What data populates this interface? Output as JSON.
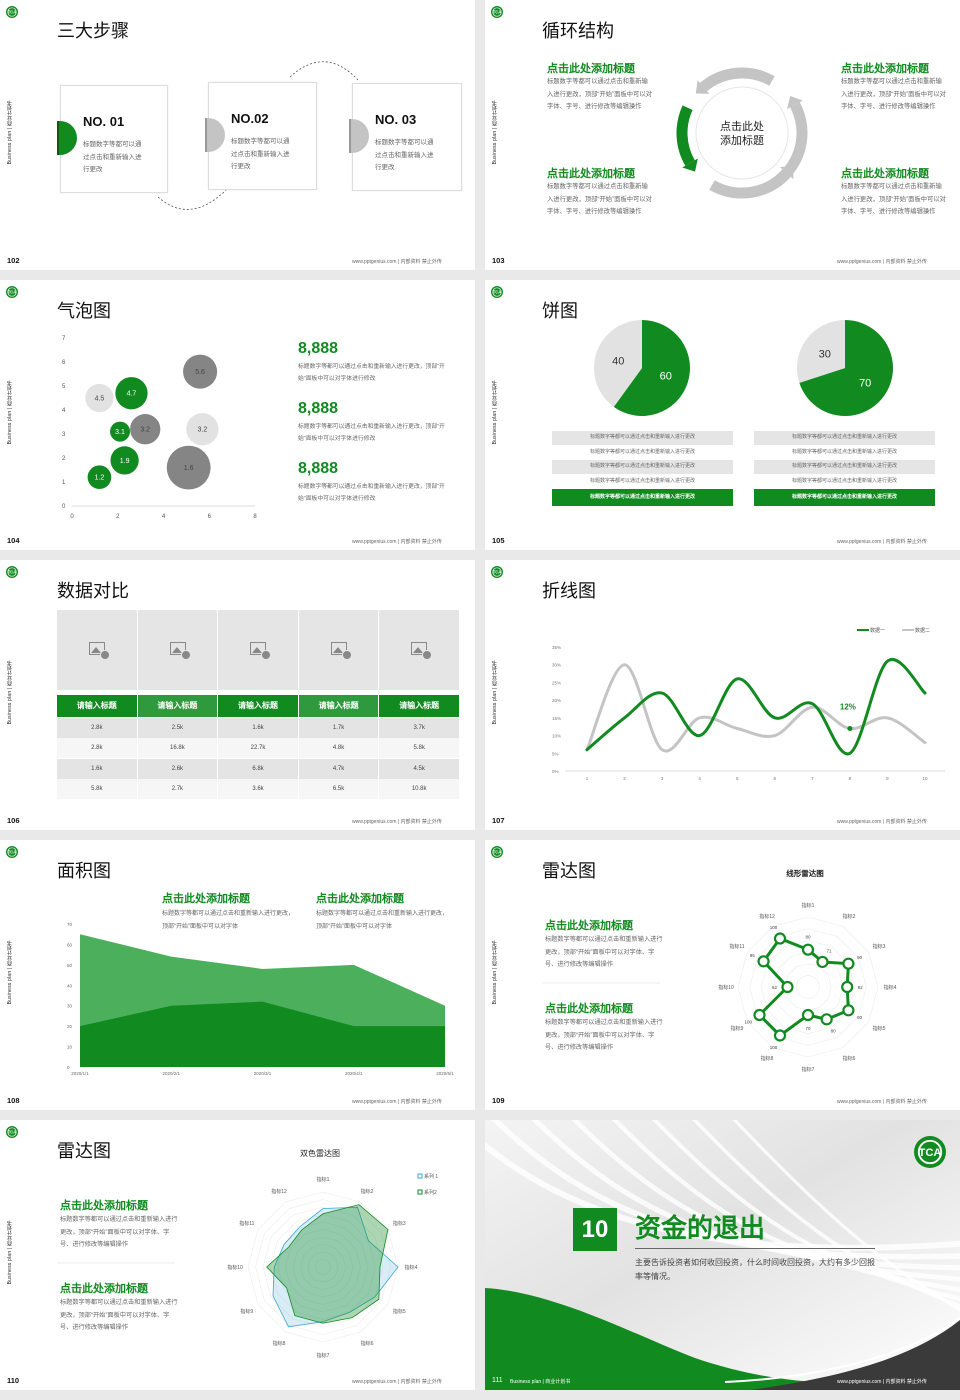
{
  "colors": {
    "green": "#118a20",
    "green_light": "#4caf5c",
    "gray_light": "#e2e2e2",
    "gray_mid": "#c4c4c4",
    "gray_dark": "#858585",
    "blue": "#3aa7d1",
    "dark": "#3a3a3a"
  },
  "common": {
    "side_text": "Business plan | 商业计划书",
    "footer": "www.pptgenius.com | 内部资料 禁止外传",
    "logo_icon": "tca-logo"
  },
  "slides": [
    {
      "page": "102",
      "title": "三大步骤",
      "steps": [
        {
          "label": "NO. 01",
          "text": "标题数字等都可以通过点击和重新输入进行更改",
          "active": true
        },
        {
          "label": "NO.02",
          "text": "标题数字等都可以通过点击和重新输入进行更改",
          "active": false
        },
        {
          "label": "NO. 03",
          "text": "标题数字等都可以通过点击和重新输入进行更改",
          "active": false
        }
      ]
    },
    {
      "page": "103",
      "title": "循环结构",
      "center_line1": "点击此处",
      "center_line2": "添加标题",
      "items": [
        {
          "heading": "点击此处添加标题",
          "text": "标题数字等都可以通过点击和重新输入进行更改，顶部“开始”面板中可以对字体、字号、进行修改等编辑操作"
        },
        {
          "heading": "点击此处添加标题",
          "text": "标题数字等都可以通过点击和重新输入进行更改，顶部“开始”面板中可以对字体、字号、进行修改等编辑操作"
        },
        {
          "heading": "点击此处添加标题",
          "text": "标题数字等都可以通过点击和重新输入进行更改，顶部“开始”面板中可以对字体、字号、进行修改等编辑操作"
        },
        {
          "heading": "点击此处添加标题",
          "text": "标题数字等都可以通过点击和重新输入进行更改，顶部“开始”面板中可以对字体、字号、进行修改等编辑操作"
        }
      ]
    },
    {
      "page": "104",
      "title": "气泡图",
      "stats": [
        {
          "value": "8,888",
          "text": "标题数字等都可以通过点击和重新输入进行更改，顶部“开始”面板中可以对字体进行修改"
        },
        {
          "value": "8,888",
          "text": "标题数字等都可以通过点击和重新输入进行更改，顶部“开始”面板中可以对字体进行修改"
        },
        {
          "value": "8,888",
          "text": "标题数字等都可以通过点击和重新输入进行更改，顶部“开始”面板中可以对字体进行修改"
        }
      ]
    },
    {
      "page": "105",
      "title": "饼图",
      "rows_left": [
        "标题数字等都可以通过点击和重新输入进行更改",
        "标题数字等都可以通过点击和重新输入进行更改",
        "标题数字等都可以通过点击和重新输入进行更改",
        "标题数字等都可以通过点击和重新输入进行更改",
        "标题数字等都可以通过点击和重新输入进行更改"
      ],
      "rows_right": [
        "标题数字等都可以通过点击和重新输入进行更改",
        "标题数字等都可以通过点击和重新输入进行更改",
        "标题数字等都可以通过点击和重新输入进行更改",
        "标题数字等都可以通过点击和重新输入进行更改",
        "标题数字等都可以通过点击和重新输入进行更改"
      ]
    },
    {
      "page": "106",
      "title": "数据对比",
      "image_icon": "image-placeholder-icon"
    },
    {
      "page": "107",
      "title": "折线图"
    },
    {
      "page": "108",
      "title": "面积图",
      "items": [
        {
          "heading": "点击此处添加标题",
          "text": "标题数字等都可以通过点击和重新输入进行更改，顶部“开始”面板中可以对字体"
        },
        {
          "heading": "点击此处添加标题",
          "text": "标题数字等都可以通过点击和重新输入进行更改，顶部“开始”面板中可以对字体"
        }
      ]
    },
    {
      "page": "109",
      "title": "雷达图",
      "items": [
        {
          "heading": "点击此处添加标题",
          "text": "标题数字等都可以通过点击和重新输入进行更改，顶部“开始”面板中可以对字体、字号、进行修改等编辑操作"
        },
        {
          "heading": "点击此处添加标题",
          "text": "标题数字等都可以通过点击和重新输入进行更改，顶部“开始”面板中可以对字体、字号、进行修改等编辑操作"
        }
      ]
    },
    {
      "page": "110",
      "title": "雷达图",
      "items": [
        {
          "heading": "点击此处添加标题",
          "text": "标题数字等都可以通过点击和重新输入进行更改，顶部“开始”面板中可以对字体、字号、进行修改等编辑操作"
        },
        {
          "heading": "点击此处添加标题",
          "text": "标题数字等都可以通过点击和重新输入进行更改，顶部“开始”面板中可以对字体、字号、进行修改等编辑操作"
        }
      ]
    },
    {
      "page": "111",
      "section_number": "10",
      "section_title": "资金的退出",
      "section_text": "主要告诉投资者如何收回投资，什么时间收回投资，大约有多少回报率等情况。",
      "bottom_left": "Business plan | 商业计划书"
    }
  ],
  "chart_data": [
    {
      "type": "scatter",
      "subtype": "bubble",
      "xlim": [
        0,
        8
      ],
      "ylim": [
        0,
        7
      ],
      "xticks": [
        "0",
        "2",
        "4",
        "6",
        "8"
      ],
      "yticks": [
        "0",
        "1",
        "2",
        "3",
        "4",
        "5",
        "6",
        "7"
      ],
      "points": [
        {
          "x": 1.2,
          "y": 1.2,
          "size": 1.4,
          "label": "1.2",
          "color": "green"
        },
        {
          "x": 2.3,
          "y": 1.9,
          "size": 2.0,
          "label": "1.9",
          "color": "green"
        },
        {
          "x": 2.1,
          "y": 3.1,
          "size": 1.0,
          "label": "3.1",
          "color": "green"
        },
        {
          "x": 3.2,
          "y": 3.2,
          "size": 2.3,
          "label": "3.2",
          "color": "gray_dark"
        },
        {
          "x": 1.2,
          "y": 4.5,
          "size": 2.0,
          "label": "4.5",
          "color": "gray_light"
        },
        {
          "x": 2.6,
          "y": 4.7,
          "size": 2.6,
          "label": "4.7",
          "color": "green"
        },
        {
          "x": 5.6,
          "y": 5.6,
          "size": 2.9,
          "label": "5.6",
          "color": "gray_dark"
        },
        {
          "x": 5.7,
          "y": 3.2,
          "size": 2.6,
          "label": "3.2",
          "color": "gray_light"
        },
        {
          "x": 5.1,
          "y": 1.6,
          "size": 4.8,
          "label": "1.6",
          "color": "gray_dark"
        }
      ]
    },
    {
      "type": "pie",
      "values": [
        60,
        40
      ],
      "labels": [
        "60",
        "40"
      ],
      "colors": [
        "green",
        "gray_light"
      ]
    },
    {
      "type": "pie",
      "values": [
        70,
        30
      ],
      "labels": [
        "70",
        "30"
      ],
      "colors": [
        "green",
        "gray_light"
      ]
    },
    {
      "type": "table",
      "headers": [
        "请输入标题",
        "请输入标题",
        "请输入标题",
        "请输入标题",
        "请输入标题"
      ],
      "rows": [
        [
          "2.8k",
          "2.5k",
          "1.6k",
          "1.7k",
          "3.7k"
        ],
        [
          "2.8k",
          "16.8k",
          "22.7k",
          "4.8k",
          "5.8k"
        ],
        [
          "1.6k",
          "2.6k",
          "6.8k",
          "4.7k",
          "4.5k"
        ],
        [
          "5.8k",
          "2.7k",
          "3.6k",
          "6.5k",
          "10.8k"
        ]
      ]
    },
    {
      "type": "line",
      "smooth": true,
      "x": [
        "1",
        "2",
        "3",
        "4",
        "5",
        "6",
        "7",
        "8",
        "9",
        "10"
      ],
      "yticks": [
        "0%",
        "5%",
        "10%",
        "15%",
        "20%",
        "25%",
        "30%",
        "35%"
      ],
      "ylim": [
        0,
        35
      ],
      "legend": "top-right",
      "series": [
        {
          "name": "数据一",
          "color": "green",
          "values": [
            6,
            15,
            22,
            10,
            26,
            15,
            19,
            5,
            31,
            22
          ]
        },
        {
          "name": "数据二",
          "color": "gray_mid",
          "values": [
            6,
            30,
            6,
            15,
            12,
            10,
            18,
            12,
            15,
            8
          ]
        }
      ],
      "annotation": {
        "x": "8",
        "value": 12,
        "label": "12%"
      }
    },
    {
      "type": "area",
      "x": [
        "2020/1/1",
        "2020/2/1",
        "2020/3/1",
        "2020/4/1",
        "2020/5/1"
      ],
      "yticks": [
        "0",
        "10",
        "20",
        "30",
        "40",
        "50",
        "60",
        "70"
      ],
      "ylim": [
        0,
        70
      ],
      "series": [
        {
          "color": "green_light",
          "values": [
            65,
            54,
            48,
            50,
            30
          ]
        },
        {
          "color": "green",
          "values": [
            20,
            30,
            32,
            20,
            20
          ]
        }
      ]
    },
    {
      "type": "radar",
      "title": "线形雷达图",
      "range": [
        40,
        115
      ],
      "axes": [
        "指标1",
        "指标2",
        "指标3",
        "指标4",
        "指标5",
        "指标6",
        "指标7",
        "指标8",
        "指标9",
        "指标10",
        "指标11",
        "指标12"
      ],
      "series": [
        {
          "color": "green",
          "values": [
            80,
            71,
            90,
            82,
            90,
            80,
            70,
            100,
            100,
            62,
            95,
            100
          ]
        }
      ]
    },
    {
      "type": "radar",
      "title": "双色雷达图",
      "range": [
        0,
        100
      ],
      "legend": "top-right",
      "axes": [
        "指标1",
        "指标2",
        "指标3",
        "指标4",
        "指标5",
        "指标6",
        "指标7",
        "指标8",
        "指标9",
        "指标10",
        "指标11",
        "指标12"
      ],
      "series": [
        {
          "name": "系列 1",
          "color": "blue",
          "values": [
            78,
            92,
            70,
            100,
            80,
            70,
            73,
            92,
            77,
            65,
            60,
            62
          ]
        },
        {
          "name": "系列2",
          "color": "green",
          "values": [
            71,
            96,
            100,
            76,
            86,
            78,
            75,
            75,
            56,
            75,
            53,
            57
          ]
        }
      ]
    }
  ]
}
